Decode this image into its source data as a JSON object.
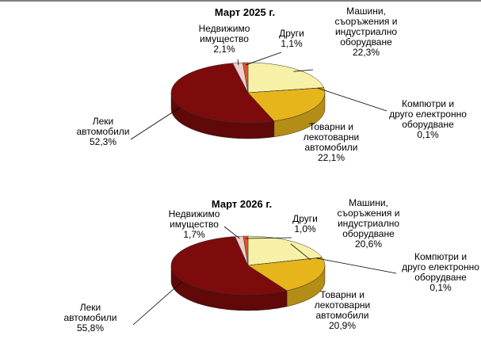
{
  "chart_data": [
    {
      "type": "pie",
      "title": "Март 2025 г.",
      "categories": [
        "Машини,\nсъоръжения и\nиндустриално\nоборудване",
        "Компютри и\nдруго електронно\nоборудване",
        "Товарни и\nлекотоварни\nавтомобили",
        "Леки\nавтомобили",
        "Недвижимо\nимущество",
        "Други"
      ],
      "values": [
        22.3,
        0.1,
        22.1,
        52.3,
        2.1,
        1.1
      ],
      "value_labels": [
        "22,3%",
        "0,1%",
        "22,1%",
        "52,3%",
        "2,1%",
        "1,1%"
      ],
      "colors": [
        "#f6f1a6",
        "#1f2a5a",
        "#e6b51c",
        "#7d0b0b",
        "#ecd0d0",
        "#e2541f"
      ]
    },
    {
      "type": "pie",
      "title": "Март 2026 г.",
      "categories": [
        "Машини,\nсъоръжения и\nиндустриално\nоборудване",
        "Компютри и\nдруго електронно\nоборудване",
        "Товарни и\nлекотоварни\nавтомобили",
        "Леки\nавтомобили",
        "Недвижимо\nимущество",
        "Други"
      ],
      "values": [
        20.6,
        0.1,
        20.9,
        55.8,
        1.7,
        1.0
      ],
      "value_labels": [
        "20,6%",
        "0,1%",
        "20,9%",
        "55,8%",
        "1,7%",
        "1,0%"
      ],
      "colors": [
        "#f6f1a6",
        "#1f2a5a",
        "#e6b51c",
        "#7d0b0b",
        "#ecd0d0",
        "#e2541f"
      ]
    }
  ]
}
